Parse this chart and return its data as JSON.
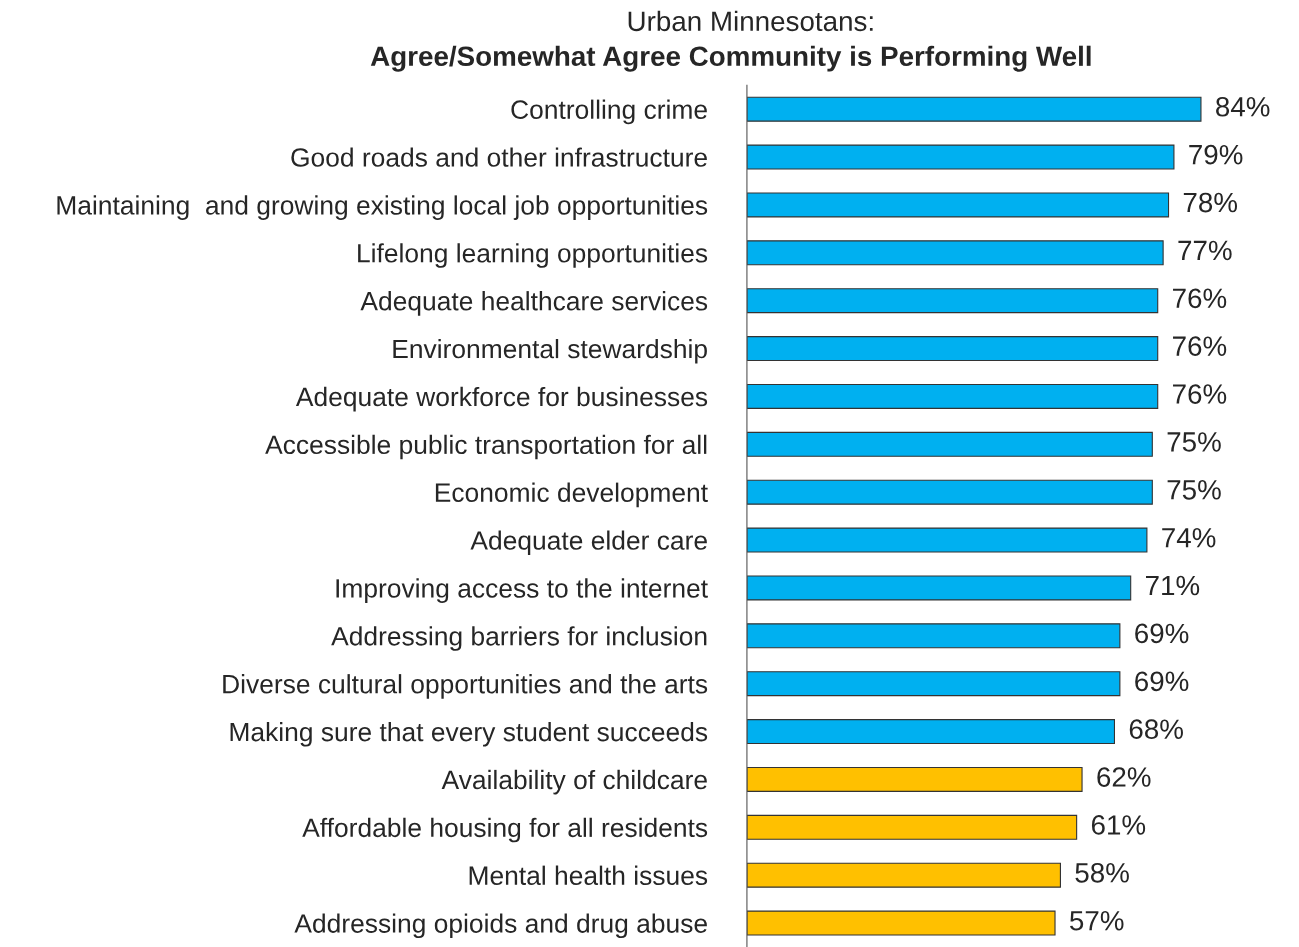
{
  "chart_data": {
    "type": "bar",
    "orientation": "horizontal",
    "title": "Urban Minnesotans:",
    "subtitle": "Agree/Somewhat Agree Community is Performing Well",
    "categories": [
      "Controlling crime",
      "Good roads and other infrastructure",
      "Maintaining  and growing existing local job opportunities",
      "Lifelong learning opportunities",
      "Adequate healthcare services",
      "Environmental stewardship",
      "Adequate workforce for businesses",
      "Accessible public transportation for all",
      "Economic development",
      "Adequate elder care",
      "Improving access to the internet",
      "Addressing barriers for inclusion",
      "Diverse cultural opportunities and the arts",
      "Making sure that every student succeeds",
      "Availability of childcare",
      "Affordable housing for all residents",
      "Mental health issues",
      "Addressing opioids and drug abuse"
    ],
    "values": [
      84,
      79,
      78,
      77,
      76,
      76,
      76,
      75,
      75,
      74,
      71,
      69,
      69,
      68,
      62,
      61,
      58,
      57
    ],
    "value_labels": [
      "84%",
      "79%",
      "78%",
      "77%",
      "76%",
      "76%",
      "76%",
      "75%",
      "75%",
      "74%",
      "71%",
      "69%",
      "69%",
      "68%",
      "62%",
      "61%",
      "58%",
      "57%"
    ],
    "colors": [
      "#00b0f0",
      "#00b0f0",
      "#00b0f0",
      "#00b0f0",
      "#00b0f0",
      "#00b0f0",
      "#00b0f0",
      "#00b0f0",
      "#00b0f0",
      "#00b0f0",
      "#00b0f0",
      "#00b0f0",
      "#00b0f0",
      "#00b0f0",
      "#ffc000",
      "#ffc000",
      "#ffc000",
      "#ffc000"
    ],
    "tick_labels": "y",
    "grid": false,
    "legend": false
  }
}
